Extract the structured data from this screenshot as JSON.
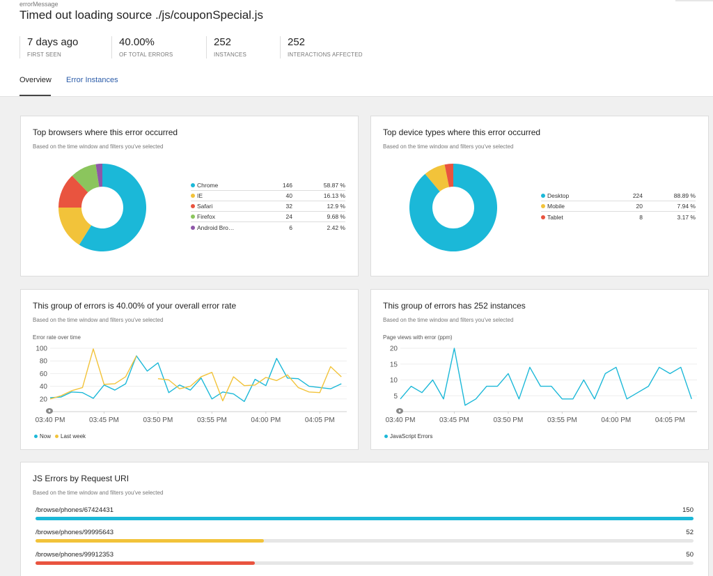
{
  "header": {
    "kicker": "errorMessage",
    "title": "Timed out loading source ./js/couponSpecial.js",
    "stats": [
      {
        "value": "7 days ago",
        "label": "FIRST SEEN"
      },
      {
        "value": "40.00%",
        "label": "OF TOTAL ERRORS"
      },
      {
        "value": "252",
        "label": "INSTANCES"
      },
      {
        "value": "252",
        "label": "INTERACTIONS AFFECTED"
      }
    ]
  },
  "tabs": [
    {
      "label": "Overview",
      "active": true
    },
    {
      "label": "Error Instances",
      "active": false
    }
  ],
  "colors": {
    "blue": "#1bb8d8",
    "yellow": "#f2c33a",
    "red": "#e9543f",
    "green": "#8bc55d",
    "purple": "#8e57a8",
    "gray": "#8a8a8a"
  },
  "browsers_card": {
    "title": "Top browsers where this error occurred",
    "subtitle": "Based on the time window and filters you've selected",
    "rows": [
      {
        "name": "Chrome",
        "count": "146",
        "pct": "58.87 %",
        "color": "#1bb8d8"
      },
      {
        "name": "IE",
        "count": "40",
        "pct": "16.13 %",
        "color": "#f2c33a"
      },
      {
        "name": "Safari",
        "count": "32",
        "pct": "12.9 %",
        "color": "#e9543f"
      },
      {
        "name": "Firefox",
        "count": "24",
        "pct": "9.68 %",
        "color": "#8bc55d"
      },
      {
        "name": "Android Bro…",
        "count": "6",
        "pct": "2.42 %",
        "color": "#8e57a8"
      }
    ]
  },
  "devices_card": {
    "title": "Top device types where this error occurred",
    "subtitle": "Based on the time window and filters you've selected",
    "rows": [
      {
        "name": "Desktop",
        "count": "224",
        "pct": "88.89 %",
        "color": "#1bb8d8"
      },
      {
        "name": "Mobile",
        "count": "20",
        "pct": "7.94 %",
        "color": "#f2c33a"
      },
      {
        "name": "Tablet",
        "count": "8",
        "pct": "3.17 %",
        "color": "#e9543f"
      }
    ]
  },
  "error_rate_card": {
    "title": "This group of errors is 40.00% of your overall error rate",
    "subtitle": "Based on the time window and filters you've selected",
    "caption": "Error rate over time",
    "legend_now": "Now",
    "legend_last_week": "Last week"
  },
  "instances_card": {
    "title": "This group of errors has 252 instances",
    "subtitle": "Based on the time window and filters you've selected",
    "caption": "Page views with error (ppm)",
    "legend": "JavaScript Errors"
  },
  "uri_card": {
    "title": "JS Errors by Request URI",
    "subtitle": "Based on the time window and filters you've selected",
    "max": 150,
    "rows": [
      {
        "uri": "/browse/phones/67424431",
        "value": 150,
        "value_label": "150",
        "color": "#1bb8d8"
      },
      {
        "uri": "/browse/phones/99995643",
        "value": 52,
        "value_label": "52",
        "color": "#f2c33a"
      },
      {
        "uri": "/browse/phones/99912353",
        "value": 50,
        "value_label": "50",
        "color": "#e9543f"
      }
    ]
  },
  "chart_data": [
    {
      "type": "pie",
      "title": "Top browsers where this error occurred",
      "categories": [
        "Chrome",
        "IE",
        "Safari",
        "Firefox",
        "Android Bro…"
      ],
      "values": [
        146,
        40,
        32,
        24,
        6
      ],
      "colors": [
        "#1bb8d8",
        "#f2c33a",
        "#e9543f",
        "#8bc55d",
        "#8e57a8"
      ],
      "donut": true
    },
    {
      "type": "pie",
      "title": "Top device types where this error occurred",
      "categories": [
        "Desktop",
        "Mobile",
        "Tablet"
      ],
      "values": [
        224,
        20,
        8
      ],
      "colors": [
        "#1bb8d8",
        "#f2c33a",
        "#e9543f"
      ],
      "donut": true
    },
    {
      "type": "line",
      "title": "This group of errors is 40.00% of your overall error rate",
      "ylabel": "Error rate over time",
      "ylim": [
        0,
        100
      ],
      "yticks": [
        20,
        40,
        60,
        80,
        100
      ],
      "xlim": [
        0,
        27.5
      ],
      "xticks": [
        0,
        5,
        10,
        15,
        20,
        25
      ],
      "xtick_labels": [
        "03:40 PM",
        "03:45 PM",
        "03:50 PM",
        "03:55 PM",
        "04:00 PM",
        "04:05 PM"
      ],
      "series": [
        {
          "name": "Now",
          "color": "#1bb8d8",
          "x": [
            0,
            1,
            2,
            3,
            4,
            5,
            6,
            7,
            8,
            9,
            10,
            11,
            12,
            13,
            14,
            15,
            16,
            17,
            18,
            19,
            20,
            21,
            22,
            23,
            24,
            25,
            26,
            27
          ],
          "y": [
            22,
            23,
            31,
            30,
            21,
            42,
            34,
            44,
            88,
            64,
            77,
            30,
            42,
            34,
            53,
            20,
            31,
            28,
            16,
            51,
            41,
            84,
            53,
            52,
            40,
            38,
            36,
            44
          ]
        },
        {
          "name": "Last week",
          "color": "#f2c33a",
          "segments": [
            {
              "x": [
                0,
                1,
                2,
                3,
                4,
                5,
                6,
                7,
                8
              ],
              "y": [
                20,
                25,
                33,
                38,
                99,
                43,
                44,
                55,
                88
              ]
            },
            {
              "x": [
                10,
                11,
                12,
                13,
                14,
                15,
                16,
                17,
                18,
                19,
                20,
                21,
                22,
                23,
                24,
                25,
                26,
                27
              ],
              "y": [
                52,
                50,
                36,
                40,
                55,
                62,
                17,
                55,
                41,
                42,
                54,
                49,
                58,
                38,
                31,
                30,
                71,
                55
              ]
            }
          ]
        }
      ]
    },
    {
      "type": "line",
      "title": "This group of errors has 252 instances",
      "ylabel": "Page views with error (ppm)",
      "ylim": [
        0,
        20
      ],
      "yticks": [
        5,
        10,
        15,
        20
      ],
      "xlim": [
        0,
        27.5
      ],
      "xticks": [
        0,
        5,
        10,
        15,
        20,
        25
      ],
      "xtick_labels": [
        "03:40 PM",
        "03:45 PM",
        "03:50 PM",
        "03:55 PM",
        "04:00 PM",
        "04:05 PM"
      ],
      "series": [
        {
          "name": "JavaScript Errors",
          "color": "#1bb8d8",
          "x": [
            0,
            1,
            2,
            3,
            4,
            5,
            6,
            7,
            8,
            9,
            10,
            11,
            12,
            13,
            14,
            15,
            16,
            17,
            18,
            19,
            20,
            21,
            22,
            23,
            24,
            25,
            26,
            27
          ],
          "y": [
            4,
            8,
            6,
            10,
            4,
            20,
            2,
            4,
            8,
            8,
            12,
            4,
            14,
            8,
            8,
            4,
            4,
            10,
            4,
            12,
            14,
            4,
            6,
            8,
            14,
            12,
            14,
            4
          ]
        }
      ]
    },
    {
      "type": "bar",
      "title": "JS Errors by Request URI",
      "categories": [
        "/browse/phones/67424431",
        "/browse/phones/99995643",
        "/browse/phones/99912353"
      ],
      "values": [
        150,
        52,
        50
      ],
      "orientation": "horizontal"
    }
  ]
}
